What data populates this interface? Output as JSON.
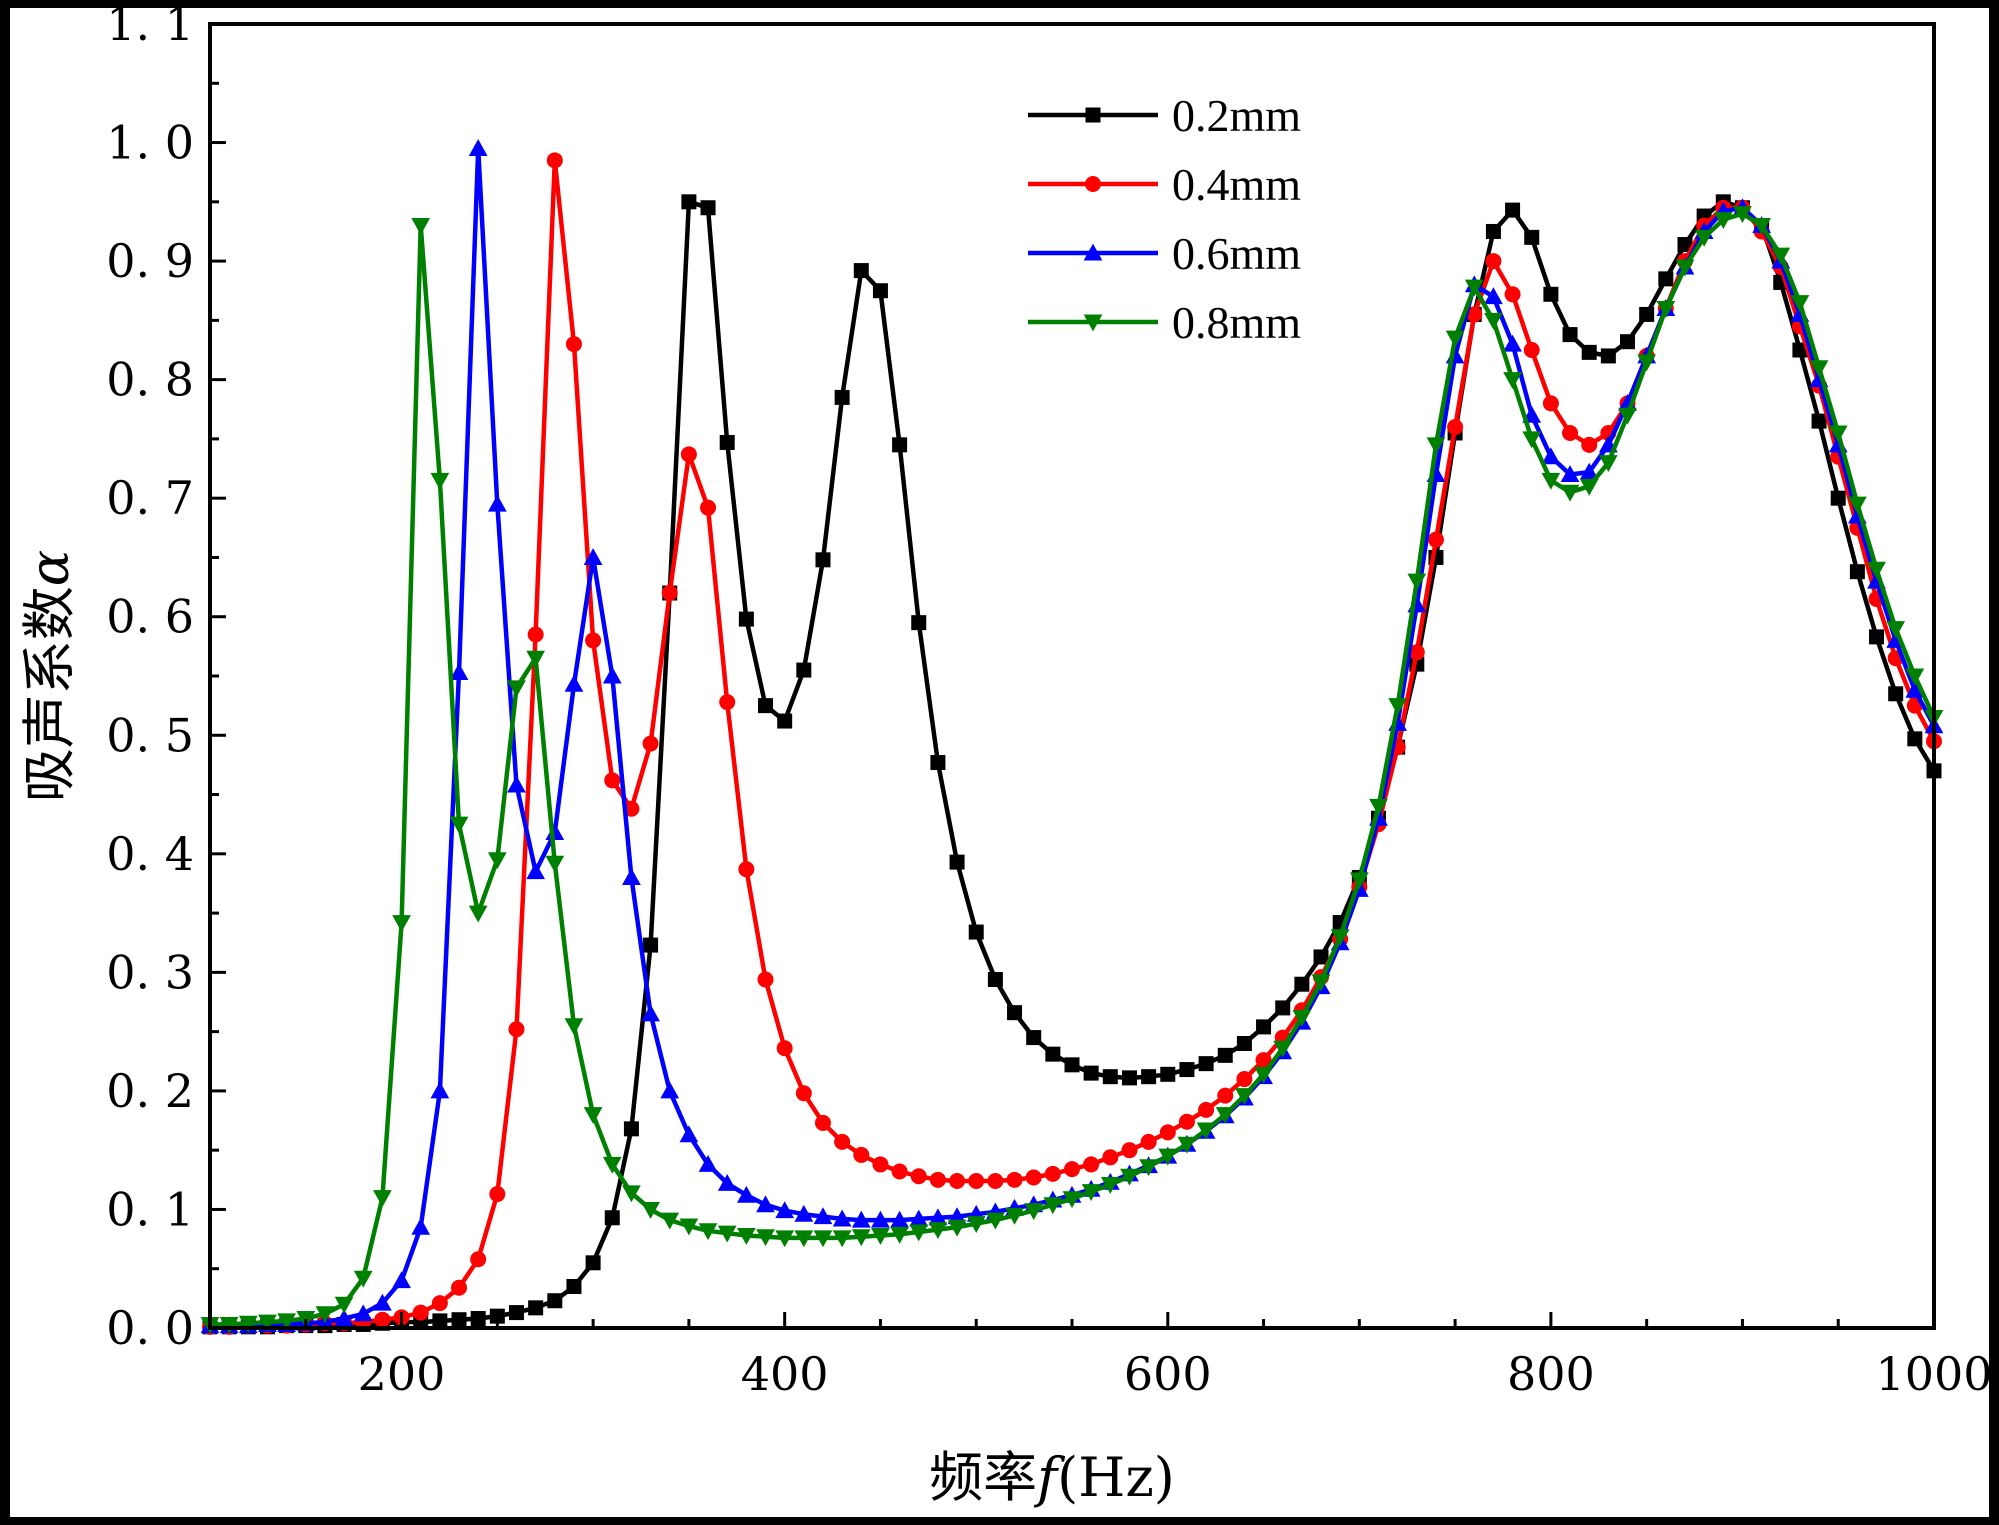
{
  "chart_data": {
    "type": "line",
    "title": "",
    "xlabel": "频率f(Hz)",
    "ylabel": "吸声系数α",
    "xlabel_parts": {
      "text": "频率",
      "symbol": "f",
      "unit": "(Hz)"
    },
    "ylabel_parts": {
      "text": "吸声系数",
      "symbol": "α"
    },
    "xlim": [
      100,
      1000
    ],
    "ylim": [
      0.0,
      1.1
    ],
    "xticks": [
      200,
      400,
      600,
      800,
      1000
    ],
    "yticks": [
      0.0,
      0.1,
      0.2,
      0.3,
      0.4,
      0.5,
      0.6,
      0.7,
      0.8,
      0.9,
      1.0,
      1.1
    ],
    "xtick_labels": [
      "200",
      "400",
      "600",
      "800",
      "1000"
    ],
    "ytick_labels": [
      "0. 0",
      "0. 1",
      "0. 2",
      "0. 3",
      "0. 4",
      "0. 5",
      "0. 6",
      "0. 7",
      "0. 8",
      "0. 9",
      "1. 0",
      "1. 1"
    ],
    "legend_position": "top-center",
    "grid": false,
    "series": [
      {
        "name": "0.2mm",
        "color": "#000000",
        "marker": "square",
        "x": [
          100,
          110,
          120,
          130,
          140,
          150,
          160,
          170,
          180,
          190,
          200,
          210,
          220,
          230,
          240,
          250,
          260,
          270,
          280,
          290,
          300,
          310,
          320,
          330,
          340,
          350,
          360,
          370,
          380,
          390,
          400,
          410,
          420,
          430,
          440,
          450,
          460,
          470,
          480,
          490,
          500,
          510,
          520,
          530,
          540,
          550,
          560,
          570,
          580,
          590,
          600,
          610,
          620,
          630,
          640,
          650,
          660,
          670,
          680,
          690,
          700,
          710,
          720,
          730,
          740,
          750,
          760,
          770,
          780,
          790,
          800,
          810,
          820,
          830,
          840,
          850,
          860,
          870,
          880,
          890,
          900,
          910,
          920,
          930,
          940,
          950,
          960,
          970,
          980,
          990,
          1000
        ],
        "y": [
          0.001,
          0.001,
          0.001,
          0.001,
          0.002,
          0.002,
          0.002,
          0.003,
          0.003,
          0.004,
          0.005,
          0.005,
          0.006,
          0.007,
          0.008,
          0.01,
          0.013,
          0.017,
          0.023,
          0.035,
          0.055,
          0.093,
          0.168,
          0.323,
          0.62,
          0.95,
          0.945,
          0.747,
          0.598,
          0.525,
          0.512,
          0.555,
          0.648,
          0.785,
          0.892,
          0.875,
          0.745,
          0.595,
          0.477,
          0.393,
          0.334,
          0.294,
          0.266,
          0.245,
          0.231,
          0.222,
          0.215,
          0.212,
          0.211,
          0.212,
          0.214,
          0.218,
          0.223,
          0.23,
          0.24,
          0.254,
          0.27,
          0.29,
          0.313,
          0.342,
          0.38,
          0.43,
          0.49,
          0.56,
          0.65,
          0.755,
          0.855,
          0.925,
          0.943,
          0.92,
          0.872,
          0.838,
          0.823,
          0.82,
          0.832,
          0.855,
          0.885,
          0.914,
          0.938,
          0.95,
          0.945,
          0.93,
          0.882,
          0.825,
          0.765,
          0.7,
          0.638,
          0.583,
          0.535,
          0.497,
          0.47
        ]
      },
      {
        "name": "0.4mm",
        "color": "#ff0000",
        "marker": "circle",
        "x": [
          100,
          110,
          120,
          130,
          140,
          150,
          160,
          170,
          180,
          190,
          200,
          210,
          220,
          230,
          240,
          250,
          260,
          270,
          280,
          290,
          300,
          310,
          320,
          330,
          340,
          350,
          360,
          370,
          380,
          390,
          400,
          410,
          420,
          430,
          440,
          450,
          460,
          470,
          480,
          490,
          500,
          510,
          520,
          530,
          540,
          550,
          560,
          570,
          580,
          590,
          600,
          610,
          620,
          630,
          640,
          650,
          660,
          670,
          680,
          690,
          700,
          710,
          720,
          730,
          740,
          750,
          760,
          770,
          780,
          790,
          800,
          810,
          820,
          830,
          840,
          850,
          860,
          870,
          880,
          890,
          900,
          910,
          920,
          930,
          940,
          950,
          960,
          970,
          980,
          990,
          1000
        ],
        "y": [
          0.001,
          0.001,
          0.002,
          0.002,
          0.002,
          0.003,
          0.004,
          0.004,
          0.005,
          0.007,
          0.009,
          0.013,
          0.021,
          0.034,
          0.058,
          0.113,
          0.252,
          0.585,
          0.985,
          0.83,
          0.58,
          0.462,
          0.438,
          0.493,
          0.62,
          0.737,
          0.692,
          0.528,
          0.387,
          0.294,
          0.236,
          0.198,
          0.173,
          0.157,
          0.146,
          0.138,
          0.132,
          0.128,
          0.125,
          0.124,
          0.124,
          0.124,
          0.125,
          0.127,
          0.13,
          0.134,
          0.138,
          0.144,
          0.15,
          0.157,
          0.165,
          0.174,
          0.184,
          0.196,
          0.21,
          0.226,
          0.245,
          0.268,
          0.296,
          0.328,
          0.372,
          0.425,
          0.49,
          0.57,
          0.665,
          0.76,
          0.855,
          0.9,
          0.872,
          0.825,
          0.78,
          0.755,
          0.745,
          0.755,
          0.78,
          0.82,
          0.86,
          0.9,
          0.93,
          0.945,
          0.945,
          0.925,
          0.895,
          0.845,
          0.795,
          0.735,
          0.675,
          0.615,
          0.565,
          0.525,
          0.495
        ]
      },
      {
        "name": "0.6mm",
        "color": "#0000ff",
        "marker": "triangle-up",
        "x": [
          100,
          110,
          120,
          130,
          140,
          150,
          160,
          170,
          180,
          190,
          200,
          210,
          220,
          230,
          240,
          250,
          260,
          270,
          280,
          290,
          300,
          310,
          320,
          330,
          340,
          350,
          360,
          370,
          380,
          390,
          400,
          410,
          420,
          430,
          440,
          450,
          460,
          470,
          480,
          490,
          500,
          510,
          520,
          530,
          540,
          550,
          560,
          570,
          580,
          590,
          600,
          610,
          620,
          630,
          640,
          650,
          660,
          670,
          680,
          690,
          700,
          710,
          720,
          730,
          740,
          750,
          760,
          770,
          780,
          790,
          800,
          810,
          820,
          830,
          840,
          850,
          860,
          870,
          880,
          890,
          900,
          910,
          920,
          930,
          940,
          950,
          960,
          970,
          980,
          990,
          1000
        ],
        "y": [
          0.002,
          0.002,
          0.002,
          0.003,
          0.003,
          0.004,
          0.005,
          0.008,
          0.012,
          0.021,
          0.04,
          0.085,
          0.2,
          0.553,
          0.995,
          0.695,
          0.458,
          0.385,
          0.418,
          0.543,
          0.65,
          0.55,
          0.38,
          0.265,
          0.2,
          0.163,
          0.138,
          0.122,
          0.112,
          0.104,
          0.099,
          0.096,
          0.094,
          0.092,
          0.091,
          0.091,
          0.091,
          0.092,
          0.093,
          0.094,
          0.096,
          0.098,
          0.101,
          0.104,
          0.108,
          0.112,
          0.117,
          0.123,
          0.13,
          0.137,
          0.145,
          0.155,
          0.166,
          0.179,
          0.194,
          0.212,
          0.233,
          0.258,
          0.288,
          0.325,
          0.37,
          0.43,
          0.51,
          0.61,
          0.72,
          0.82,
          0.88,
          0.87,
          0.83,
          0.77,
          0.735,
          0.72,
          0.722,
          0.745,
          0.78,
          0.82,
          0.86,
          0.895,
          0.925,
          0.942,
          0.945,
          0.93,
          0.9,
          0.855,
          0.8,
          0.745,
          0.685,
          0.63,
          0.58,
          0.538,
          0.508
        ]
      },
      {
        "name": "0.8mm",
        "color": "#008000",
        "marker": "triangle-down",
        "x": [
          100,
          110,
          120,
          130,
          140,
          150,
          160,
          170,
          180,
          190,
          200,
          210,
          220,
          230,
          240,
          250,
          260,
          270,
          280,
          290,
          300,
          310,
          320,
          330,
          340,
          350,
          360,
          370,
          380,
          390,
          400,
          410,
          420,
          430,
          440,
          450,
          460,
          470,
          480,
          490,
          500,
          510,
          520,
          530,
          540,
          550,
          560,
          570,
          580,
          590,
          600,
          610,
          620,
          630,
          640,
          650,
          660,
          670,
          680,
          690,
          700,
          710,
          720,
          730,
          740,
          750,
          760,
          770,
          780,
          790,
          800,
          810,
          820,
          830,
          840,
          850,
          860,
          870,
          880,
          890,
          900,
          910,
          920,
          930,
          940,
          950,
          960,
          970,
          980,
          990,
          1000
        ],
        "y": [
          0.003,
          0.003,
          0.004,
          0.005,
          0.006,
          0.008,
          0.012,
          0.02,
          0.042,
          0.11,
          0.342,
          0.93,
          0.715,
          0.425,
          0.35,
          0.395,
          0.54,
          0.565,
          0.392,
          0.255,
          0.18,
          0.138,
          0.114,
          0.1,
          0.091,
          0.086,
          0.082,
          0.08,
          0.078,
          0.077,
          0.076,
          0.076,
          0.076,
          0.076,
          0.077,
          0.078,
          0.079,
          0.081,
          0.083,
          0.085,
          0.088,
          0.091,
          0.095,
          0.099,
          0.104,
          0.109,
          0.115,
          0.121,
          0.128,
          0.136,
          0.145,
          0.155,
          0.167,
          0.18,
          0.196,
          0.214,
          0.236,
          0.262,
          0.292,
          0.33,
          0.378,
          0.44,
          0.525,
          0.63,
          0.745,
          0.835,
          0.878,
          0.85,
          0.8,
          0.75,
          0.715,
          0.705,
          0.71,
          0.73,
          0.77,
          0.815,
          0.86,
          0.895,
          0.92,
          0.935,
          0.94,
          0.93,
          0.905,
          0.865,
          0.81,
          0.755,
          0.695,
          0.64,
          0.59,
          0.55,
          0.515
        ]
      }
    ]
  }
}
